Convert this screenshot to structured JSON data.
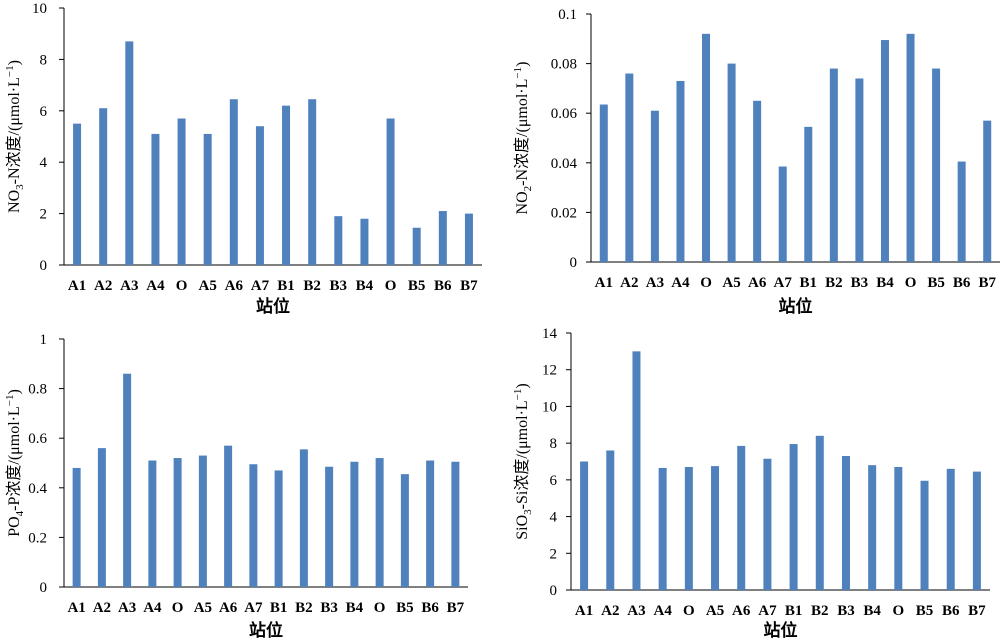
{
  "colors": {
    "bar": "#4f81bd",
    "axis": "#000000"
  },
  "chart_data": [
    {
      "type": "bar",
      "categories": [
        "A1",
        "A2",
        "A3",
        "A4",
        "O",
        "A5",
        "A6",
        "A7",
        "B1",
        "B2",
        "B3",
        "B4",
        "O",
        "B5",
        "B6",
        "B7"
      ],
      "values": [
        5.5,
        6.1,
        8.7,
        5.1,
        5.7,
        5.1,
        6.45,
        5.4,
        6.2,
        6.45,
        1.9,
        1.8,
        5.7,
        1.45,
        2.1,
        2.0
      ],
      "xlabel": "站位",
      "ylabel": {
        "prefix": "NO",
        "sub": "3",
        "suffix": "-N浓度/(μmol·L",
        "sup": "−1",
        "close": ")"
      },
      "ylim": [
        0,
        10
      ],
      "yticks": [
        "0",
        "2",
        "4",
        "6",
        "8",
        "10"
      ]
    },
    {
      "type": "bar",
      "categories": [
        "A1",
        "A2",
        "A3",
        "A4",
        "O",
        "A5",
        "A6",
        "A7",
        "B1",
        "B2",
        "B3",
        "B4",
        "O",
        "B5",
        "B6",
        "B7"
      ],
      "values": [
        0.0635,
        0.076,
        0.061,
        0.073,
        0.092,
        0.08,
        0.065,
        0.0385,
        0.0545,
        0.078,
        0.074,
        0.0895,
        0.092,
        0.078,
        0.0405,
        0.057
      ],
      "xlabel": "站位",
      "ylabel": {
        "prefix": "NO",
        "sub": "2",
        "suffix": "-N浓度/(μmol·L",
        "sup": "−1",
        "close": ")"
      },
      "ylim": [
        0,
        0.1
      ],
      "yticks": [
        "0",
        "0.02",
        "0.04",
        "0.06",
        "0.08",
        "0.1"
      ]
    },
    {
      "type": "bar",
      "categories": [
        "A1",
        "A2",
        "A3",
        "A4",
        "O",
        "A5",
        "A6",
        "A7",
        "B1",
        "B2",
        "B3",
        "B4",
        "O",
        "B5",
        "B6",
        "B7"
      ],
      "values": [
        0.48,
        0.56,
        0.86,
        0.51,
        0.52,
        0.53,
        0.57,
        0.495,
        0.47,
        0.555,
        0.485,
        0.505,
        0.52,
        0.455,
        0.51,
        0.505
      ],
      "xlabel": "站位",
      "ylabel": {
        "prefix": "PO",
        "sub": "4",
        "suffix": "-P浓度/(μmol·L",
        "sup": "−1",
        "close": ")"
      },
      "ylim": [
        0,
        1
      ],
      "yticks": [
        "0",
        "0.2",
        "0.4",
        "0.6",
        "0.8",
        "1"
      ]
    },
    {
      "type": "bar",
      "categories": [
        "A1",
        "A2",
        "A3",
        "A4",
        "O",
        "A5",
        "A6",
        "A7",
        "B1",
        "B2",
        "B3",
        "B4",
        "O",
        "B5",
        "B6",
        "B7"
      ],
      "values": [
        7.0,
        7.6,
        13.0,
        6.65,
        6.7,
        6.75,
        7.85,
        7.15,
        7.95,
        8.4,
        7.3,
        6.8,
        6.7,
        5.95,
        6.6,
        6.45
      ],
      "xlabel": "站位",
      "ylabel": {
        "prefix": "SiO",
        "sub": "3",
        "suffix": "-Si浓度/(μmol·L",
        "sup": "−1",
        "close": ")"
      },
      "ylim": [
        0,
        14
      ],
      "yticks": [
        "0",
        "2",
        "4",
        "6",
        "8",
        "10",
        "12",
        "14"
      ]
    }
  ]
}
